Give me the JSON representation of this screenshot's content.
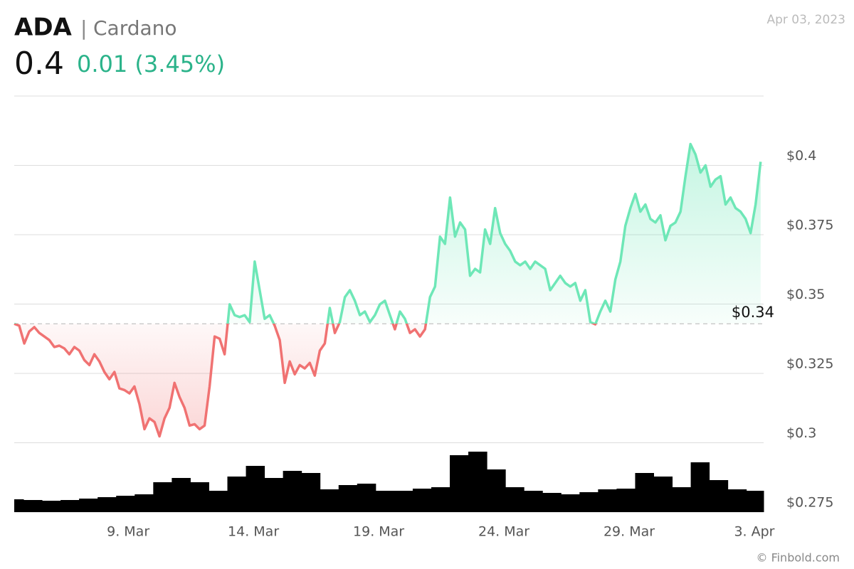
{
  "header": {
    "symbol": "ADA",
    "separator": "|",
    "name": "Cardano",
    "price": "0.4",
    "change": "0.01 (3.45%)",
    "date": "Apr 03, 2023",
    "credit": "© Finbold.com"
  },
  "chart_data": {
    "type": "line",
    "x": [
      4.45,
      4.65,
      4.85,
      5.05,
      5.25,
      5.45,
      5.65,
      5.85,
      6.05,
      6.25,
      6.45,
      6.65,
      6.85,
      7.05,
      7.25,
      7.45,
      7.65,
      7.85,
      8.05,
      8.25,
      8.45,
      8.65,
      8.85,
      9.05,
      9.25,
      9.45,
      9.65,
      9.85,
      10.05,
      10.25,
      10.45,
      10.65,
      10.85,
      11.05,
      11.25,
      11.45,
      11.65,
      11.85,
      12.05,
      12.25,
      12.45,
      12.65,
      12.85,
      13.05,
      13.25,
      13.45,
      13.65,
      13.85,
      14.05,
      14.25,
      14.45,
      14.65,
      14.85,
      15.05,
      15.25,
      15.45,
      15.65,
      15.85,
      16.05,
      16.25,
      16.45,
      16.65,
      16.85,
      17.05,
      17.25,
      17.45,
      17.65,
      17.85,
      18.05,
      18.25,
      18.45,
      18.65,
      18.85,
      19.05,
      19.25,
      19.45,
      19.65,
      19.85,
      20.05,
      20.25,
      20.45,
      20.65,
      20.85,
      21.05,
      21.25,
      21.45,
      21.65,
      21.85,
      22.05,
      22.25,
      22.45,
      22.65,
      22.85,
      23.05,
      23.25,
      23.45,
      23.65,
      23.85,
      24.05,
      24.25,
      24.45,
      24.65,
      24.85,
      25.05,
      25.25,
      25.45,
      25.65,
      25.85,
      26.05,
      26.25,
      26.45,
      26.65,
      26.85,
      27.05,
      27.25,
      27.45,
      27.65,
      27.85,
      28.05,
      28.25,
      28.45,
      28.65,
      28.85,
      29.05,
      29.25,
      29.45,
      29.65,
      29.85,
      30.05,
      30.25,
      30.45,
      30.65,
      30.85,
      31.05,
      31.25,
      31.45,
      31.65,
      31.85,
      32.05,
      32.25,
      32.45,
      32.65,
      32.85,
      33.05,
      33.25,
      33.45,
      33.65,
      33.85,
      34.05,
      34.25
    ],
    "values": [
      0.3429,
      0.3422,
      0.3358,
      0.3401,
      0.3417,
      0.3396,
      0.3383,
      0.337,
      0.3345,
      0.335,
      0.334,
      0.3319,
      0.3345,
      0.3332,
      0.3298,
      0.328,
      0.3319,
      0.3293,
      0.3255,
      0.3229,
      0.3255,
      0.3196,
      0.319,
      0.3178,
      0.3203,
      0.3139,
      0.3049,
      0.3088,
      0.3075,
      0.3023,
      0.3088,
      0.3126,
      0.3216,
      0.3165,
      0.3126,
      0.3062,
      0.3067,
      0.3049,
      0.3062,
      0.3203,
      0.3383,
      0.3375,
      0.3319,
      0.3499,
      0.346,
      0.3453,
      0.346,
      0.3435,
      0.3653,
      0.355,
      0.3447,
      0.346,
      0.3422,
      0.337,
      0.3216,
      0.3293,
      0.3247,
      0.328,
      0.3268,
      0.3288,
      0.3242,
      0.3332,
      0.3358,
      0.3486,
      0.3396,
      0.3435,
      0.3525,
      0.355,
      0.3512,
      0.346,
      0.3473,
      0.3435,
      0.346,
      0.3499,
      0.3512,
      0.346,
      0.3409,
      0.3473,
      0.3447,
      0.3396,
      0.3409,
      0.3383,
      0.3409,
      0.3525,
      0.3563,
      0.3743,
      0.3717,
      0.3884,
      0.3743,
      0.3794,
      0.3769,
      0.3602,
      0.3627,
      0.3614,
      0.3769,
      0.3717,
      0.3846,
      0.3756,
      0.3717,
      0.3692,
      0.3653,
      0.364,
      0.3653,
      0.3627,
      0.3653,
      0.364,
      0.3627,
      0.355,
      0.3576,
      0.3602,
      0.3576,
      0.3563,
      0.3576,
      0.3512,
      0.355,
      0.3435,
      0.3427,
      0.3473,
      0.3512,
      0.3473,
      0.3589,
      0.3653,
      0.3782,
      0.3846,
      0.3897,
      0.3833,
      0.3859,
      0.3807,
      0.3794,
      0.382,
      0.373,
      0.3782,
      0.3794,
      0.3833,
      0.3961,
      0.4077,
      0.4039,
      0.3974,
      0.4,
      0.3923,
      0.3949,
      0.3961,
      0.3859,
      0.3884,
      0.3846,
      0.3833,
      0.3807,
      0.3756,
      0.3859,
      0.4013
    ],
    "up_color": "#6ee7b7",
    "down_color": "#f07272",
    "baseline": {
      "value": 0.3429,
      "label": "$0.34"
    },
    "xlim": [
      4.45,
      34.37
    ],
    "ylim": [
      0.275,
      0.425
    ],
    "xticks": [
      {
        "value": 9,
        "label": "9. Mar"
      },
      {
        "value": 14,
        "label": "14. Mar"
      },
      {
        "value": 19,
        "label": "19. Mar"
      },
      {
        "value": 24,
        "label": "24. Mar"
      },
      {
        "value": 29,
        "label": "29. Mar"
      },
      {
        "value": 34,
        "label": "3. Apr"
      }
    ],
    "yticks": [
      {
        "value": 0.275,
        "label": "$0.275"
      },
      {
        "value": 0.3,
        "label": "$0.3"
      },
      {
        "value": 0.325,
        "label": "$0.325"
      },
      {
        "value": 0.35,
        "label": "$0.35"
      },
      {
        "value": 0.375,
        "label": "$0.375"
      },
      {
        "value": 0.4,
        "label": "$0.4"
      }
    ],
    "grid": true,
    "volume": {
      "color": "#000000",
      "vlim": [
        0,
        100
      ],
      "x": [
        4.45,
        5.19,
        5.93,
        6.67,
        7.41,
        8.15,
        8.89,
        9.63,
        10.37,
        11.11,
        11.85,
        12.59,
        13.33,
        14.07,
        14.81,
        15.55,
        16.29,
        17.03,
        17.77,
        18.51,
        19.25,
        19.99,
        20.73,
        21.47,
        22.21,
        22.95,
        23.69,
        24.43,
        25.17,
        25.91,
        26.65,
        27.39,
        28.13,
        28.87,
        29.61,
        30.35,
        31.09,
        31.83,
        32.57,
        33.31,
        34.05
      ],
      "values": [
        18,
        17,
        16,
        17,
        19,
        21,
        23,
        25,
        42,
        48,
        42,
        30,
        50,
        65,
        48,
        58,
        55,
        32,
        38,
        40,
        30,
        30,
        33,
        35,
        80,
        85,
        60,
        35,
        30,
        27,
        25,
        28,
        32,
        33,
        55,
        50,
        35,
        70,
        45,
        32,
        30
      ]
    }
  }
}
